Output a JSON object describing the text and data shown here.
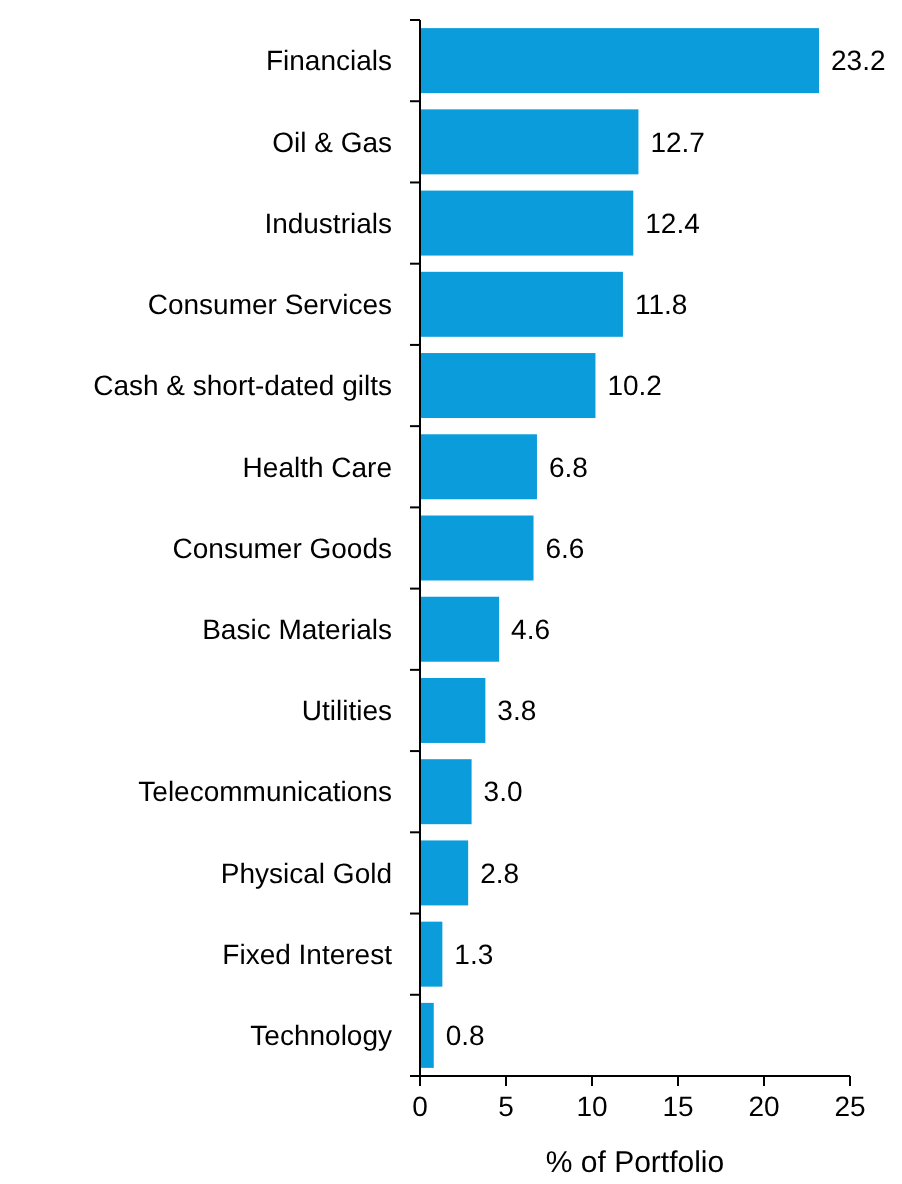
{
  "chart_data": {
    "type": "bar",
    "orientation": "horizontal",
    "xlabel": "% of Portfolio",
    "categories": [
      "Financials",
      "Oil & Gas",
      "Industrials",
      "Consumer Services",
      "Cash & short-dated gilts",
      "Health Care",
      "Consumer Goods",
      "Basic Materials",
      "Utilities",
      "Telecommunications",
      "Physical Gold",
      "Fixed Interest",
      "Technology"
    ],
    "values": [
      23.2,
      12.7,
      12.4,
      11.8,
      10.2,
      6.8,
      6.6,
      4.6,
      3.8,
      3.0,
      2.8,
      1.3,
      0.8
    ],
    "value_labels": [
      "23.2",
      "12.7",
      "12.4",
      "11.8",
      "10.2",
      "6.8",
      "6.6",
      "4.6",
      "3.8",
      "3.0",
      "2.8",
      "1.3",
      "0.8"
    ],
    "color": "#0b9ddb",
    "xlim": [
      0,
      25
    ],
    "xticks": [
      0,
      5,
      10,
      15,
      20,
      25
    ],
    "grid": false
  }
}
